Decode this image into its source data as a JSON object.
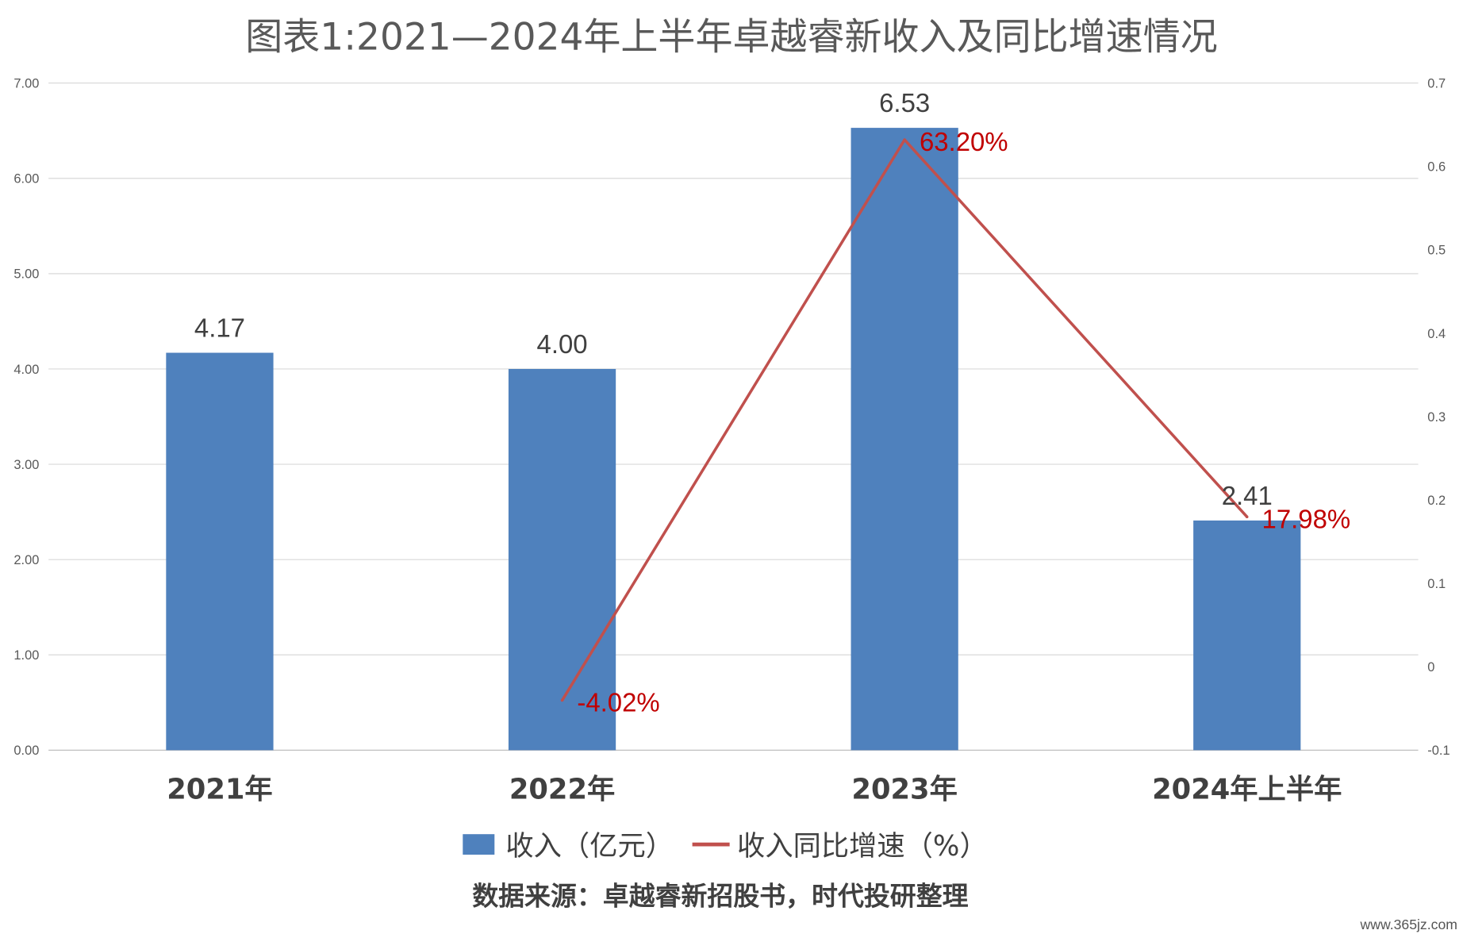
{
  "chart_data": {
    "type": "bar",
    "title": "图表1:2021—2024年上半年卓越睿新收入及同比增速情况",
    "xlabel": "",
    "ylabel": "",
    "categories": [
      "2021年",
      "2022年",
      "2023年",
      "2024年上半年"
    ],
    "series": [
      {
        "name": "收入（亿元）",
        "type": "bar",
        "axis": "left",
        "values": [
          4.17,
          4.0,
          6.53,
          2.41
        ],
        "labels": [
          "4.17",
          "4.00",
          "6.53",
          "2.41"
        ],
        "color": "#4F81BD"
      },
      {
        "name": "收入同比增速（%）",
        "type": "line",
        "axis": "right",
        "values": [
          null,
          -0.0402,
          0.632,
          0.1798
        ],
        "labels": [
          null,
          "-4.02%",
          "63.20%",
          "17.98%"
        ],
        "color": "#C0504D",
        "label_color": "#C00000"
      }
    ],
    "y_left": {
      "range": [
        0,
        7
      ],
      "ticks": [
        "0.00",
        "1.00",
        "2.00",
        "3.00",
        "4.00",
        "5.00",
        "6.00",
        "7.00"
      ]
    },
    "y_right": {
      "range": [
        -0.1,
        0.7
      ],
      "ticks": [
        "-0.1",
        "0",
        "0.1",
        "0.2",
        "0.3",
        "0.4",
        "0.5",
        "0.6",
        "0.7"
      ]
    },
    "grid": true,
    "legend_position": "bottom"
  },
  "source": "数据来源：卓越睿新招股书，时代投研整理",
  "watermark": "www.365jz.com",
  "colors": {
    "background": "#FFFFFF",
    "text": "#404040",
    "axis_text": "#595959",
    "gridline": "#D9D9D9",
    "axis_line": "#BFBFBF"
  }
}
